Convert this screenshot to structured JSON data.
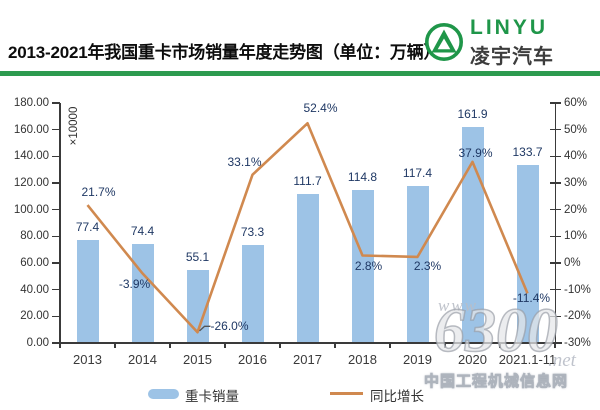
{
  "header": {
    "title": "2013-2021年我国重卡市场销量年度走势图（单位：万辆）",
    "logo": {
      "brand_en": "LINYU",
      "brand_cn": "凌宇汽车",
      "brand_color": "#1f9649"
    }
  },
  "chart_data": {
    "type": "bar+line combo",
    "categories": [
      "2013",
      "2014",
      "2015",
      "2016",
      "2017",
      "2018",
      "2019",
      "2020",
      "2021.1-11"
    ],
    "series": [
      {
        "name": "重卡销量",
        "type": "bar",
        "axis": "left",
        "values": [
          77.4,
          74.4,
          55.1,
          73.3,
          111.7,
          114.8,
          117.4,
          161.9,
          133.7
        ],
        "value_labels": [
          "77.4",
          "74.4",
          "55.1",
          "73.3",
          "111.7",
          "114.8",
          "117.4",
          "161.9",
          "133.7"
        ],
        "color": "#9dc3e6"
      },
      {
        "name": "同比增长",
        "type": "line",
        "axis": "right",
        "values": [
          21.7,
          -3.9,
          -26.0,
          33.1,
          52.4,
          2.8,
          2.3,
          37.9,
          -11.4
        ],
        "value_labels": [
          "21.7%",
          "-3.9%",
          "-26.0%",
          "33.1%",
          "52.4%",
          "2.8%",
          "2.3%",
          "37.9%",
          "-11.4%"
        ],
        "color": "#d0894f"
      }
    ],
    "left_axis": {
      "min": 0,
      "max": 180,
      "step": 20,
      "unit_label": "×10000",
      "tick_labels": [
        "0.00",
        "20.00",
        "40.00",
        "60.00",
        "80.00",
        "100.00",
        "120.00",
        "140.00",
        "160.00",
        "180.00"
      ]
    },
    "right_axis": {
      "min": -30,
      "max": 60,
      "step": 10,
      "tick_labels": [
        "-30%",
        "-20%",
        "-10%",
        "0%",
        "10%",
        "20%",
        "30%",
        "40%",
        "50%",
        "60%"
      ]
    },
    "legend": {
      "position": "bottom",
      "items": [
        "重卡销量",
        "同比增长"
      ]
    },
    "grid": false,
    "label_color": "#1f3864"
  },
  "watermark": {
    "www": "www.",
    "big": "6300",
    "net": ".net",
    "site": "中国工程机械信息网"
  }
}
